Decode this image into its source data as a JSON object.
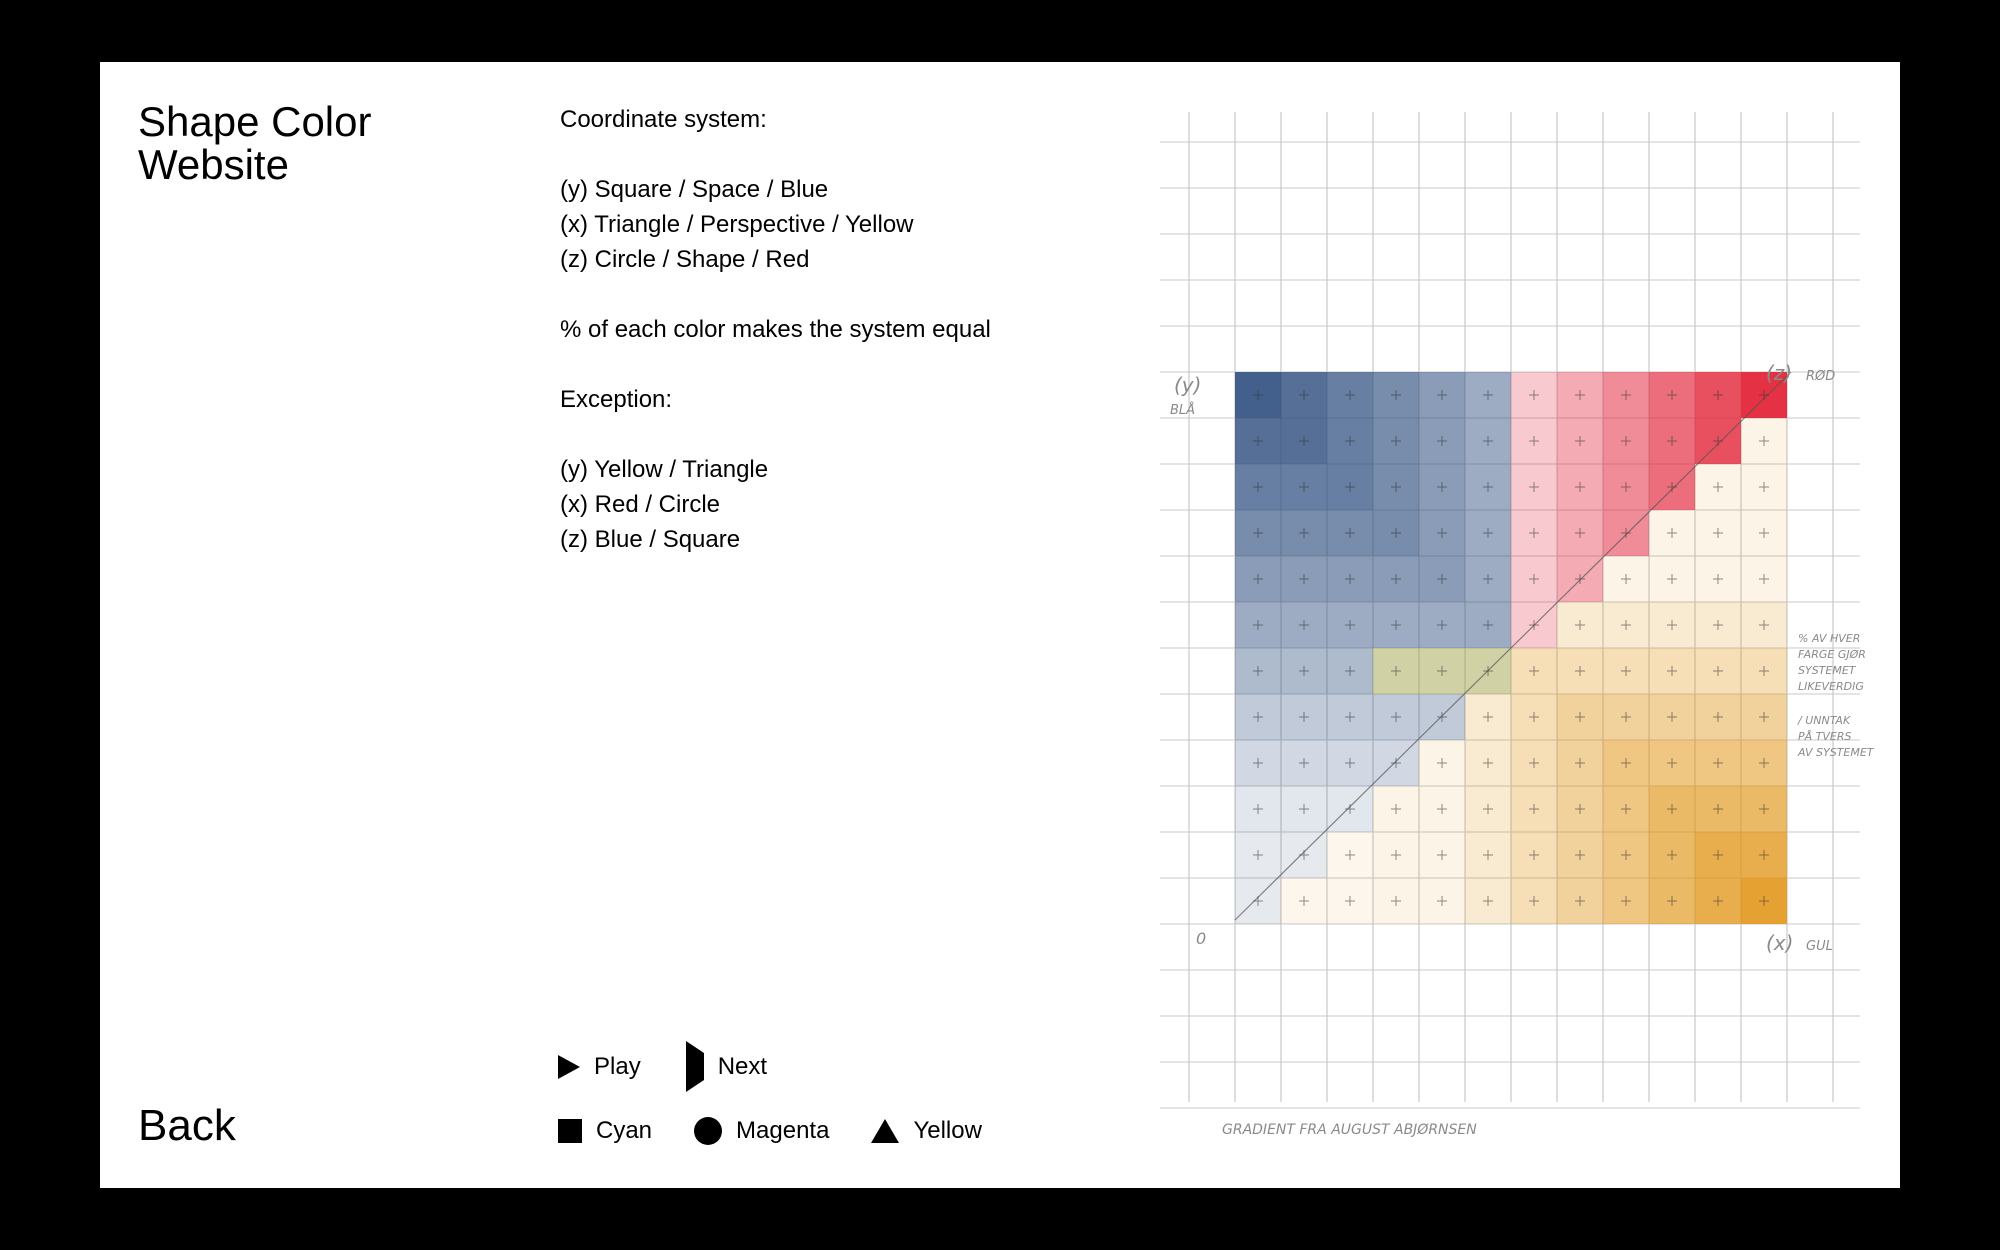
{
  "header": {
    "title": "Shape Color Website"
  },
  "nav": {
    "back_label": "Back"
  },
  "info": {
    "heading": "Coordinate system:",
    "axes": [
      "(y) Square / Space / Blue",
      "(x) Triangle / Perspective / Yellow",
      "(z) Circle / Shape / Red"
    ],
    "equality_note": "% of each color makes the system equal",
    "exception_heading": "Exception:",
    "exceptions": [
      "(y) Yellow / Triangle",
      "(x) Red / Circle",
      "(z) Blue / Square"
    ]
  },
  "controls": {
    "play_label": "Play",
    "next_label": "Next",
    "cyan_label": "Cyan",
    "magenta_label": "Magenta",
    "yellow_label": "Yellow"
  },
  "drawing": {
    "y_axis_label": "(y)",
    "y_axis_note": "BLÅ",
    "z_axis_label": "(z)",
    "z_axis_note": "RØD",
    "x_axis_label": "(x)",
    "x_axis_note": "GUL",
    "origin_label": "0",
    "side_note": [
      "% AV HVER",
      "FARGE GJØR",
      "SYSTEMET",
      "LIKEVERDIG",
      "/ UNNTAK",
      "PÅ TVERS",
      "AV SYSTEMET"
    ],
    "caption": "GRADIENT FRA AUGUST ABJØRNSEN",
    "colors": {
      "blue": "#2f4f7f",
      "red": "#e3263a",
      "yellow": "#e0920f",
      "olive": "#9a9a3a"
    }
  }
}
